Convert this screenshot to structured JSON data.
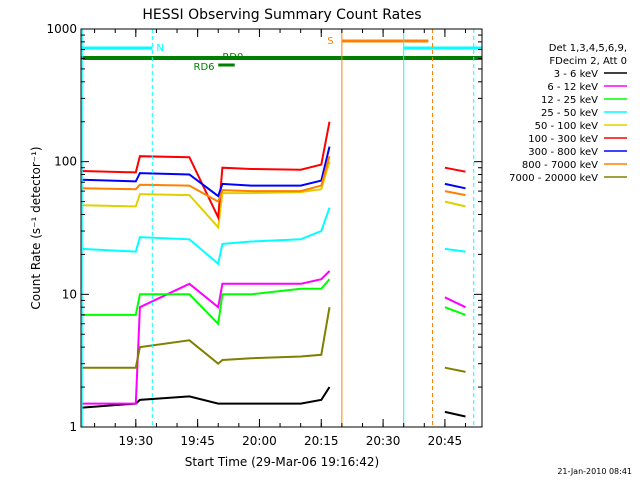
{
  "chart_data": {
    "type": "line",
    "title": "HESSI Observing Summary Count Rates",
    "xlabel": "Start Time (29-Mar-06 19:16:42)",
    "ylabel": "Count Rate (s⁻¹ detector⁻¹)",
    "y_scale": "log",
    "xlim": [
      "19:16:42",
      "20:54:00"
    ],
    "ylim": [
      1,
      1000
    ],
    "x_ticks": [
      "19:30",
      "19:45",
      "20:00",
      "20:15",
      "20:30",
      "20:45"
    ],
    "y_ticks": [
      "1",
      "10",
      "100",
      "1000"
    ],
    "legend_header": [
      "Det 1,3,4,5,6,9,",
      "FDecim 2, Att 0"
    ],
    "legend_position": "right",
    "x": [
      "19:17",
      "19:30",
      "19:31",
      "19:43",
      "19:50",
      "19:51",
      "19:58",
      "20:10",
      "20:15",
      "20:17",
      "20:19",
      "20:20",
      "20:30",
      "20:38",
      "20:45",
      "20:50"
    ],
    "series": [
      {
        "name": "3 - 6 keV",
        "color": "#000000",
        "values": [
          1.4,
          1.5,
          1.6,
          1.7,
          1.5,
          1.5,
          1.5,
          1.5,
          1.6,
          2.0,
          null,
          null,
          null,
          null,
          1.3,
          1.2
        ]
      },
      {
        "name": "6 - 12 keV",
        "color": "#ff00ff",
        "values": [
          1.5,
          1.5,
          8.0,
          12.0,
          8.0,
          12.0,
          12.0,
          12.0,
          13.0,
          15.0,
          null,
          null,
          null,
          null,
          9.5,
          8.0
        ]
      },
      {
        "name": "12 - 25 keV",
        "color": "#00ff00",
        "values": [
          7.0,
          7.0,
          10.0,
          10.0,
          6.0,
          10.0,
          10.0,
          11.0,
          11.0,
          13.0,
          null,
          null,
          null,
          null,
          8.0,
          7.0
        ]
      },
      {
        "name": "25 - 50 keV",
        "color": "#00ffff",
        "values": [
          22.0,
          21.0,
          27.0,
          26.0,
          17.0,
          24.0,
          25.0,
          26.0,
          30.0,
          45.0,
          null,
          null,
          null,
          null,
          22.0,
          21.0
        ]
      },
      {
        "name": "50 - 100 keV",
        "color": "#e0d000",
        "values": [
          47.0,
          46.0,
          57.0,
          56.0,
          32.0,
          58.0,
          58.0,
          59.0,
          62.0,
          100.0,
          null,
          null,
          null,
          null,
          50.0,
          46.0
        ]
      },
      {
        "name": "100 - 300 keV",
        "color": "#ff0000",
        "values": [
          85.0,
          83.0,
          110.0,
          108.0,
          38.0,
          90.0,
          88.0,
          87.0,
          95.0,
          200.0,
          null,
          null,
          null,
          null,
          90.0,
          84.0
        ]
      },
      {
        "name": "300 - 800 keV",
        "color": "#0000ff",
        "values": [
          73.0,
          71.0,
          82.0,
          80.0,
          55.0,
          68.0,
          66.0,
          66.0,
          72.0,
          130.0,
          null,
          null,
          null,
          null,
          68.0,
          63.0
        ]
      },
      {
        "name": "800 - 7000 keV",
        "color": "#ff8000",
        "values": [
          63.0,
          62.0,
          67.0,
          66.0,
          50.0,
          61.0,
          60.0,
          60.0,
          66.0,
          110.0,
          null,
          null,
          null,
          null,
          60.0,
          56.0
        ]
      },
      {
        "name": "7000 - 20000 keV",
        "color": "#808000",
        "values": [
          2.8,
          2.8,
          4.0,
          4.5,
          3.0,
          3.2,
          3.3,
          3.4,
          3.5,
          8.0,
          null,
          null,
          null,
          null,
          2.8,
          2.6
        ]
      }
    ],
    "flags": [
      {
        "label": "N",
        "color": "#00ffff"
      },
      {
        "label": "S",
        "color": "#ff8000"
      },
      {
        "label": "RD0",
        "color": "#008000"
      },
      {
        "label": "RD6",
        "color": "#008000"
      }
    ],
    "timestamp": "21-Jan-2010 08:41"
  }
}
